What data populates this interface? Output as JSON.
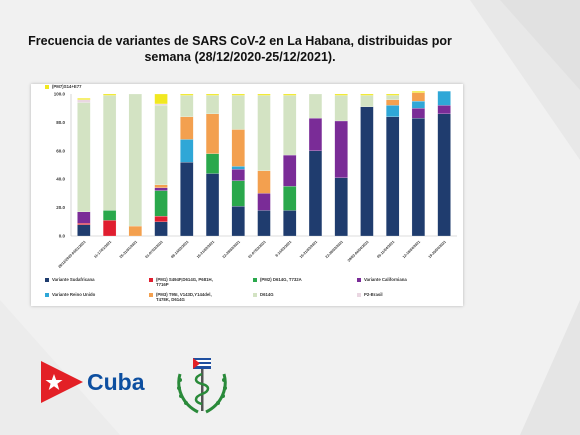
{
  "title": "Frecuencia de variantes de SARS CoV-2 en La Habana, distribuidas por semana (28/12/2020-25/12/2021).",
  "logo": {
    "text": "Cuba"
  },
  "colors": {
    "background": "#f1f1f1",
    "logo_blue": "#0d4fa0",
    "logo_red": "#e32026"
  },
  "chart_data": {
    "type": "bar",
    "stacked": true,
    "ylim": [
      0,
      100
    ],
    "yticks": [
      "0.0",
      "20.0",
      "40.0",
      "60.0",
      "80.0",
      "100.0"
    ],
    "xlabel": "",
    "ylabel": "",
    "grid": false,
    "legend_position": "bottom",
    "categories": [
      "28/12/2020-03/01/2021",
      "11-17/01/2021",
      "25-31/01/2021",
      "01-07/02/2021",
      "08-14/02/2021",
      "15-21/02/2021",
      "22-28/02/2021",
      "01-07/03/2021",
      "8-14/03/2021",
      "15-21/03/2021",
      "22-28/03/2021",
      "29/03-04/04/2021",
      "05-11/04/2021",
      "12-18/04/2021",
      "19-25/04/2021"
    ],
    "series": [
      {
        "name": "Variante Sudafricana",
        "color": "#1f3c6e",
        "values": [
          8,
          0,
          0,
          10,
          52,
          44,
          21,
          18,
          18,
          60,
          41,
          91,
          84,
          83,
          86
        ]
      },
      {
        "name": "(PM1) S494P,D614G, P681H, T716P",
        "color": "#e01e2f",
        "values": [
          1,
          11,
          0,
          4,
          0,
          0,
          0,
          0,
          0,
          0,
          0,
          0,
          0,
          0,
          0
        ]
      },
      {
        "name": "(PM2) D614G, T732A",
        "color": "#2aa84c",
        "values": [
          0,
          7,
          0,
          18,
          0,
          14,
          18,
          0,
          17,
          0,
          0,
          0,
          0,
          0,
          0
        ]
      },
      {
        "name": "Variante Californiana",
        "color": "#7a2c97",
        "values": [
          8,
          0,
          0,
          2,
          0,
          0,
          8,
          12,
          22,
          23,
          40,
          0,
          0,
          7,
          6
        ]
      },
      {
        "name": "Variante Reino Unido",
        "color": "#2fa7d7",
        "values": [
          0,
          0,
          0,
          0,
          16,
          0,
          2,
          0,
          0,
          0,
          0,
          0,
          8,
          5,
          10
        ]
      },
      {
        "name": "(PM3) T95I, V143D,Y144del, T478K, D614G",
        "color": "#f3a04f",
        "values": [
          0,
          0,
          7,
          2,
          16,
          28,
          26,
          16,
          0,
          0,
          0,
          0,
          4,
          6,
          0
        ]
      },
      {
        "name": "D614G",
        "color": "#d3e3c3",
        "values": [
          77,
          81,
          93,
          56,
          15,
          13,
          24,
          53,
          42,
          17,
          18,
          8,
          3,
          0,
          0
        ]
      },
      {
        "name": "P2-Brasil",
        "color": "#ead7e2",
        "values": [
          2,
          0,
          0,
          1,
          0,
          0,
          0,
          0,
          0,
          0,
          0,
          0,
          0,
          0,
          0
        ]
      },
      {
        "name": "(PM7)S14+E77",
        "color": "#f1e821",
        "values": [
          1,
          1,
          0,
          7,
          1,
          1,
          1,
          1,
          1,
          0,
          1,
          1,
          1,
          1,
          0
        ]
      }
    ]
  }
}
